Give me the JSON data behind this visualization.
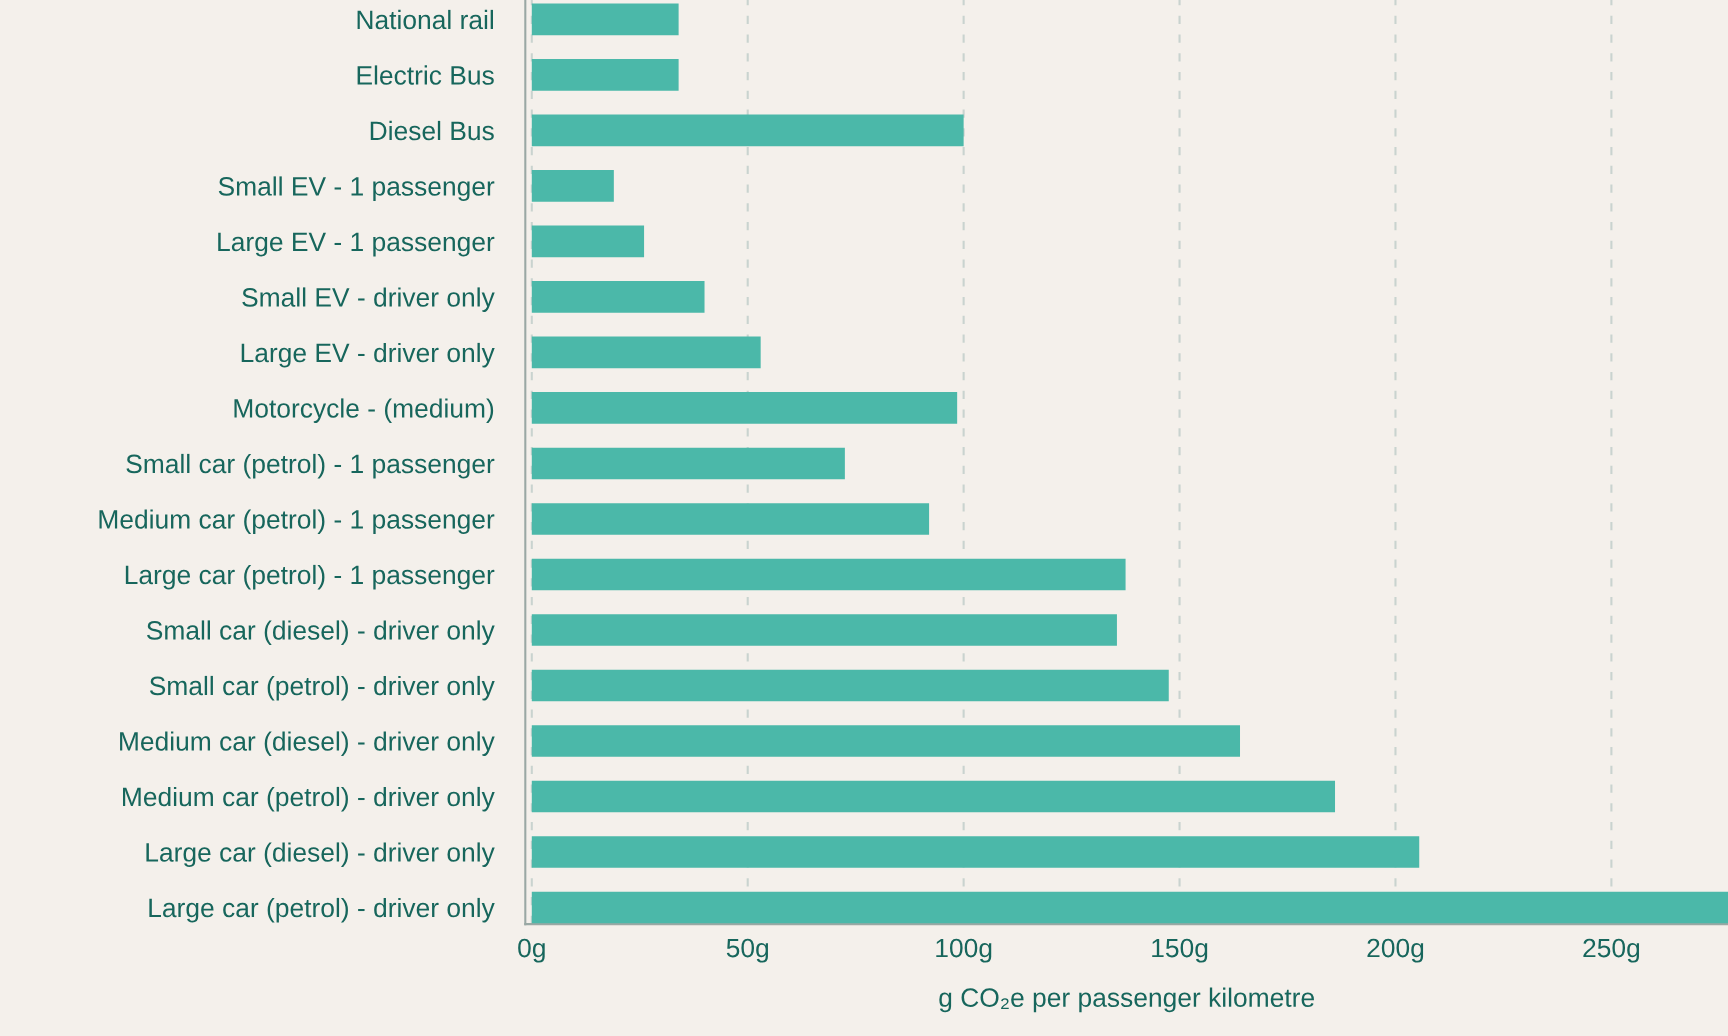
{
  "chart_data": {
    "type": "bar",
    "orientation": "horizontal",
    "xlabel": "g CO₂e per passenger kilometre",
    "color": "#4bb8a9",
    "categories": [
      "National rail",
      "Electric Bus",
      "Diesel Bus",
      "Small EV - 1 passenger",
      "Large EV - 1 passenger",
      "Small EV - driver only",
      "Large EV - driver only",
      "Motorcycle - (medium)",
      "Small car (petrol) - 1 passenger",
      "Medium car (petrol) - 1 passenger",
      "Large car (petrol) - 1 passenger",
      "Small car (diesel) - driver only",
      "Small car (petrol) - driver only",
      "Medium car (diesel) - driver only",
      "Medium car (petrol) - driver only",
      "Large car (diesel) - driver only",
      "Large car (petrol) - driver only"
    ],
    "values": [
      34,
      34,
      100,
      19,
      26,
      40,
      53,
      98.5,
      72.5,
      92,
      137.5,
      135.5,
      147.5,
      164,
      186,
      205.5,
      277
    ],
    "xlim": [
      -1.5,
      277
    ],
    "xticks": [
      {
        "value": 0,
        "label": "0g"
      },
      {
        "value": 50,
        "label": "50g"
      },
      {
        "value": 100,
        "label": "100g"
      },
      {
        "value": 150,
        "label": "150g"
      },
      {
        "value": 200,
        "label": "200g"
      },
      {
        "value": 250,
        "label": "250g"
      }
    ],
    "grid": "x"
  }
}
